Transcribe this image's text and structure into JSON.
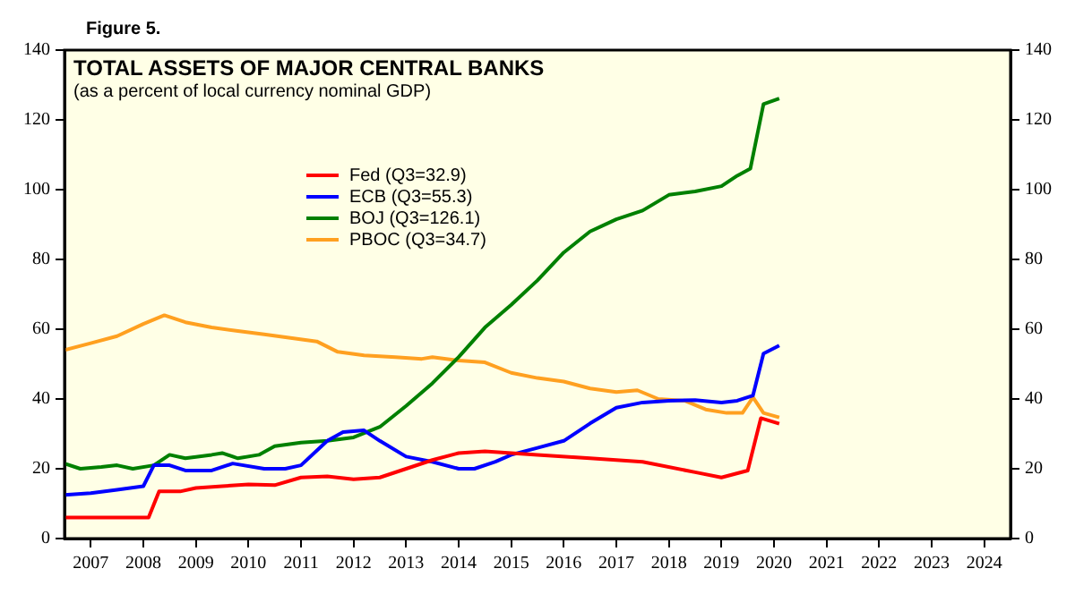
{
  "chart_data": {
    "type": "line",
    "title": "TOTAL ASSETS OF MAJOR CENTRAL BANKS",
    "subtitle": "(as a percent of local currency nominal GDP)",
    "annotations": [
      "Figure 5."
    ],
    "xlim": [
      2007,
      2025
    ],
    "xticks": [
      {
        "value": 2007.5,
        "label": "2007"
      },
      {
        "value": 2008.5,
        "label": "2008"
      },
      {
        "value": 2009.5,
        "label": "2009"
      },
      {
        "value": 2010.5,
        "label": "2010"
      },
      {
        "value": 2011.5,
        "label": "2011"
      },
      {
        "value": 2012.5,
        "label": "2012"
      },
      {
        "value": 2013.5,
        "label": "2013"
      },
      {
        "value": 2014.5,
        "label": "2014"
      },
      {
        "value": 2015.5,
        "label": "2015"
      },
      {
        "value": 2016.5,
        "label": "2016"
      },
      {
        "value": 2017.5,
        "label": "2017"
      },
      {
        "value": 2018.5,
        "label": "2018"
      },
      {
        "value": 2019.5,
        "label": "2019"
      },
      {
        "value": 2020.5,
        "label": "2020"
      },
      {
        "value": 2021.5,
        "label": "2021"
      },
      {
        "value": 2022.5,
        "label": "2022"
      },
      {
        "value": 2023.5,
        "label": "2023"
      },
      {
        "value": 2024.5,
        "label": "2024"
      }
    ],
    "ylim": [
      0,
      140
    ],
    "yticks": [
      0,
      20,
      40,
      60,
      80,
      100,
      120,
      140
    ],
    "y2lim": [
      0,
      140
    ],
    "y2ticks": [
      0,
      20,
      40,
      60,
      80,
      100,
      120,
      140
    ],
    "grid": false,
    "legend": "top left",
    "marker": "none",
    "line_style": "solid",
    "series": [
      {
        "name": "Fed (Q3=32.9)",
        "color": "#ff0000",
        "x": [
          2007,
          2008.3,
          2008.6,
          2008.8,
          2009.2,
          2009.5,
          2010,
          2010.5,
          2011,
          2011.5,
          2012,
          2012.5,
          2013,
          2013.5,
          2014,
          2014.5,
          2015,
          2015.5,
          2016,
          2017,
          2018,
          2019,
          2019.5,
          2020,
          2020.25,
          2020.6
        ],
        "values": [
          6,
          6,
          6,
          13.5,
          13.5,
          14.5,
          15,
          15.5,
          15.3,
          17.5,
          17.8,
          17,
          17.5,
          20,
          22.5,
          24.5,
          25,
          24.5,
          24,
          23,
          22,
          19,
          17.5,
          19.5,
          34.5,
          32.9
        ]
      },
      {
        "name": "ECB (Q3=55.3)",
        "color": "#0000ff",
        "x": [
          2007,
          2007.5,
          2008,
          2008.5,
          2008.7,
          2009,
          2009.3,
          2009.8,
          2010.2,
          2010.8,
          2011.2,
          2011.5,
          2012,
          2012.3,
          2012.7,
          2013,
          2013.5,
          2014,
          2014.5,
          2014.8,
          2015.2,
          2015.5,
          2016,
          2016.5,
          2017,
          2017.5,
          2018,
          2018.5,
          2019,
          2019.5,
          2019.8,
          2020.1,
          2020.3,
          2020.6
        ],
        "values": [
          12.5,
          13,
          14,
          15,
          21,
          21,
          19.5,
          19.5,
          21.5,
          20,
          20,
          21,
          28,
          30.5,
          31,
          28,
          23.5,
          22,
          20,
          20,
          22,
          24,
          26,
          28,
          33,
          37.5,
          39,
          39.5,
          39.7,
          39,
          39.5,
          41,
          53,
          55.3
        ]
      },
      {
        "name": "BOJ (Q3=126.1)",
        "color": "#008000",
        "x": [
          2007,
          2007.3,
          2007.7,
          2008,
          2008.3,
          2008.7,
          2009,
          2009.3,
          2009.8,
          2010,
          2010.3,
          2010.7,
          2011,
          2011.5,
          2012,
          2012.5,
          2013,
          2013.5,
          2014,
          2014.5,
          2015,
          2015.5,
          2016,
          2016.5,
          2017,
          2017.5,
          2018,
          2018.5,
          2019,
          2019.5,
          2019.8,
          2020.05,
          2020.3,
          2020.6
        ],
        "values": [
          21.5,
          20,
          20.5,
          21,
          20,
          21,
          24,
          23,
          24,
          24.5,
          23,
          24,
          26.5,
          27.5,
          28,
          29,
          32,
          38,
          44.5,
          52,
          60.5,
          67,
          74,
          82,
          88,
          91.5,
          94,
          98.5,
          99.5,
          101,
          104,
          106,
          124.5,
          126.1
        ]
      },
      {
        "name": "PBOC (Q3=34.7)",
        "color": "#ffa020",
        "x": [
          2007,
          2007.5,
          2008,
          2008.5,
          2008.9,
          2009.3,
          2009.8,
          2010.3,
          2010.8,
          2011.3,
          2011.8,
          2012.2,
          2012.7,
          2013.3,
          2013.8,
          2014,
          2014.5,
          2015,
          2015.5,
          2016,
          2016.5,
          2017,
          2017.5,
          2017.9,
          2018.3,
          2018.8,
          2019.2,
          2019.6,
          2019.9,
          2020.1,
          2020.3,
          2020.6
        ],
        "values": [
          54,
          56,
          58,
          61.5,
          64,
          62,
          60.5,
          59.5,
          58.5,
          57.5,
          56.5,
          53.5,
          52.5,
          52,
          51.5,
          52,
          51,
          50.5,
          47.5,
          46,
          45,
          43,
          42,
          42.5,
          40,
          39.5,
          37,
          36,
          36,
          40.5,
          36,
          34.7
        ]
      }
    ]
  }
}
